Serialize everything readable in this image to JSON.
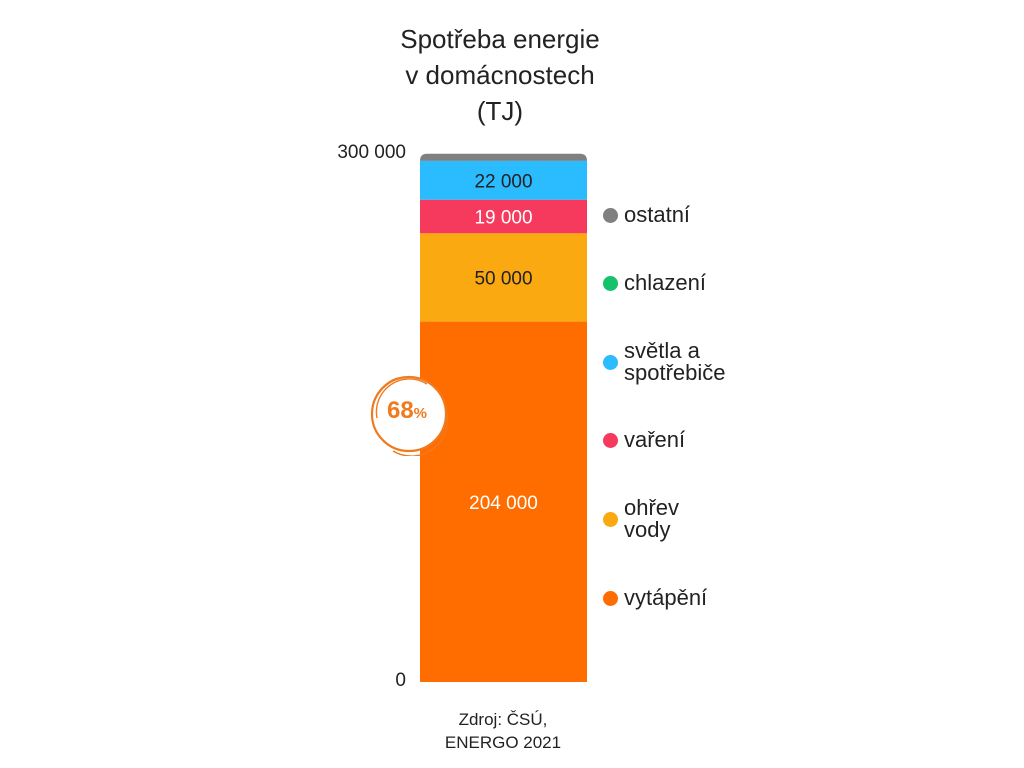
{
  "chart_data": {
    "type": "bar",
    "stacked": true,
    "title_lines": [
      "Spotřeba energie",
      "v domácnostech",
      "(TJ)"
    ],
    "y_ticks": [
      "300 000",
      "0"
    ],
    "ylim": [
      0,
      300000
    ],
    "grid": false,
    "legend_placement": "right",
    "series": [
      {
        "name": "vytápění",
        "value": 204000,
        "label": "204 000",
        "color": "#ff6d00",
        "label_color": "#ffffff"
      },
      {
        "name": "ohřev vody",
        "value": 50000,
        "label": "50 000",
        "color": "#fba911",
        "label_color": "#222222"
      },
      {
        "name": "vaření",
        "value": 19000,
        "label": "19 000",
        "color": "#f53a5e",
        "label_color": "#ffffff"
      },
      {
        "name": "chlazení",
        "value": 0,
        "label": "",
        "color": "#15c26b",
        "label_color": "#222222"
      },
      {
        "name": "světla a spotřebiče",
        "value": 22000,
        "label": "22 000",
        "color": "#2bbcff",
        "label_color": "#222222"
      },
      {
        "name": "ostatní",
        "value": 4000,
        "label": "",
        "color": "#808080",
        "label_color": "#222222"
      }
    ],
    "legend": [
      {
        "lines": [
          "ostatní"
        ],
        "color": "#808080"
      },
      {
        "lines": [
          "chlazení"
        ],
        "color": "#15c26b"
      },
      {
        "lines": [
          "světla a",
          "spotřebiče"
        ],
        "color": "#2bbcff"
      },
      {
        "lines": [
          "vaření"
        ],
        "color": "#f53a5e"
      },
      {
        "lines": [
          "ohřev",
          "vody"
        ],
        "color": "#fba911"
      },
      {
        "lines": [
          "vytápění"
        ],
        "color": "#ff6d00"
      }
    ],
    "annotation": {
      "value": "68",
      "unit": "%",
      "color": "#f07a1e"
    },
    "source_lines": [
      "Zdroj: ČSÚ,",
      "ENERGO 2021"
    ]
  }
}
